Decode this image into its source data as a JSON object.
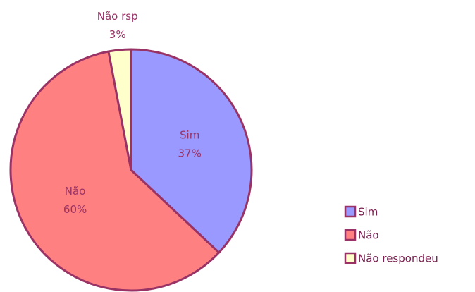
{
  "chart_data": {
    "type": "pie",
    "categories": [
      "Sim",
      "Não",
      "Não respondeu"
    ],
    "slice_labels": [
      "Sim",
      "Não",
      "Não rsp"
    ],
    "values": [
      37,
      60,
      3
    ],
    "value_labels": [
      "37%",
      "60%",
      "3%"
    ],
    "colors": [
      "#9999ff",
      "#ff8080",
      "#ffffcc"
    ],
    "legend": "right"
  }
}
